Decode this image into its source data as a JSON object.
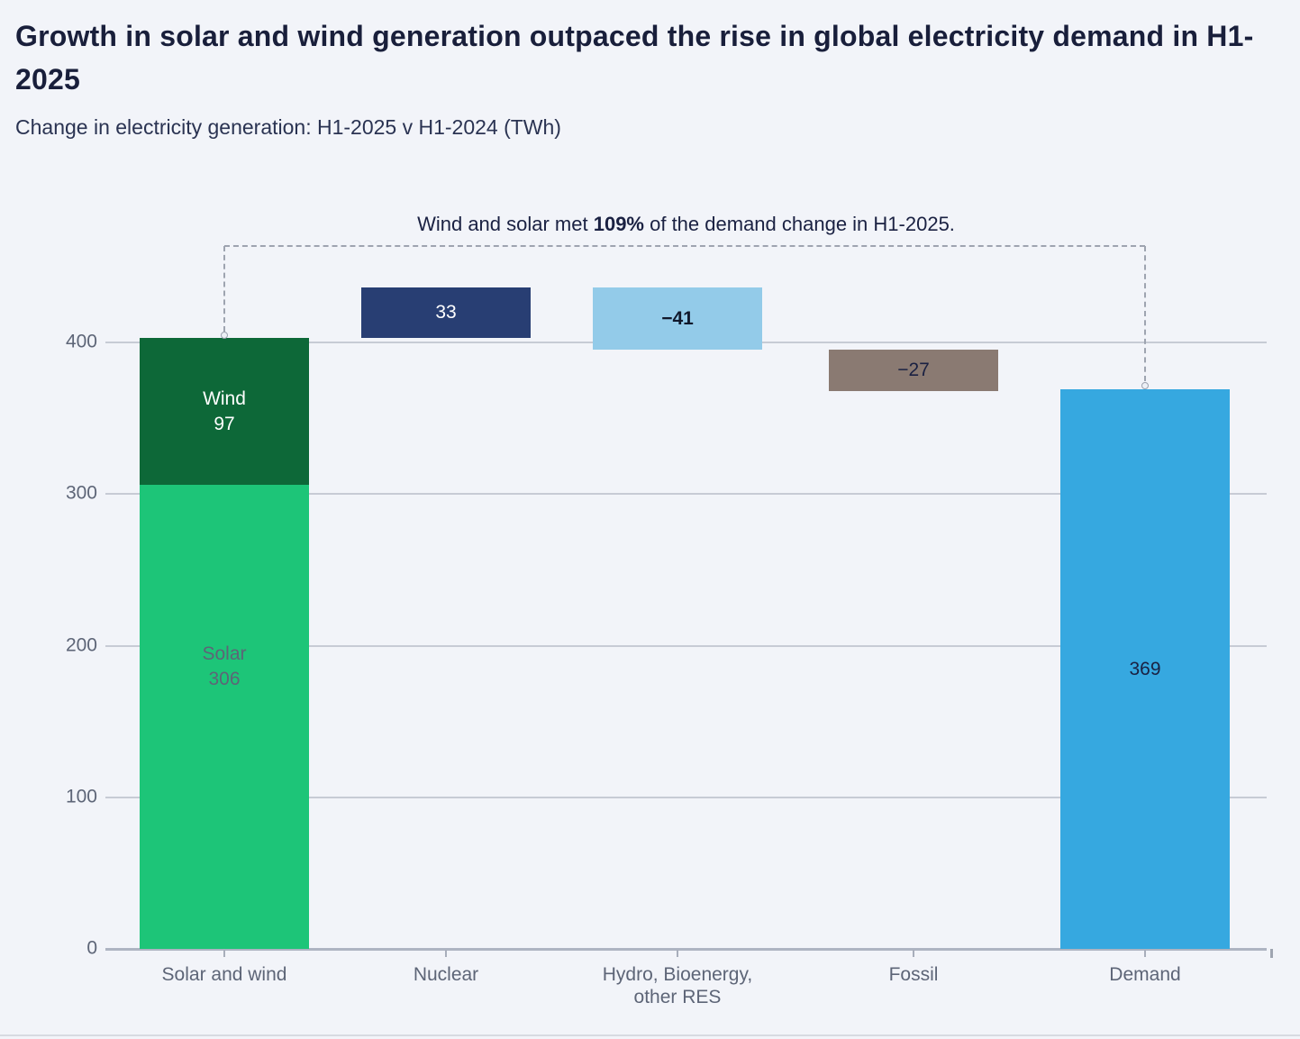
{
  "page": {
    "title": "Growth in solar and wind generation outpaced the rise in global electricity demand in H1-2025",
    "subtitle": "Change in electricity generation: H1-2025 v H1-2024 (TWh)"
  },
  "annotation": {
    "pre": "Wind and solar met ",
    "highlight": "109%",
    "post": " of the demand change in H1-2025."
  },
  "chart_data": {
    "type": "bar",
    "variant": "waterfall",
    "title": "Growth in solar and wind generation outpaced the rise in global electricity demand in H1-2025",
    "subtitle": "Change in electricity generation: H1-2025 v H1-2024 (TWh)",
    "unit": "TWh",
    "ylim": [
      0,
      450
    ],
    "yticks": [
      0,
      100,
      200,
      300,
      400
    ],
    "grid": true,
    "legend": null,
    "categories": [
      "Solar and wind",
      "Nuclear",
      "Hydro, Bioenergy,\nother RES",
      "Fossil",
      "Demand"
    ],
    "bars": [
      {
        "category": "Solar and wind",
        "total": 403,
        "segments": [
          {
            "name": "Solar",
            "value": 306,
            "from": 0,
            "to": 306,
            "color": "#1DC578",
            "label_lines": [
              "Solar",
              "306"
            ],
            "label_color": "#5D6577",
            "label_y": 740
          },
          {
            "name": "Wind",
            "value": 97,
            "from": 306,
            "to": 403,
            "color": "#0D6838",
            "label_lines": [
              "Wind",
              "97"
            ],
            "label_color": "#FFFFFF"
          }
        ]
      },
      {
        "category": "Nuclear",
        "name": "Nuclear",
        "value": 33,
        "from": 403,
        "to": 436,
        "color": "#283E73",
        "label": "33",
        "label_color": "#FFFFFF"
      },
      {
        "category": "Hydro, Bioenergy, other RES",
        "name": "Hydro, Bioenergy, other RES",
        "value": -41,
        "from": 436,
        "to": 395,
        "color": "#93CBE9",
        "label": "−41",
        "label_color": "#10182B",
        "label_weight": "700"
      },
      {
        "category": "Fossil",
        "name": "Fossil",
        "value": -27,
        "from": 395,
        "to": 368,
        "color": "#8A7A72",
        "label": "−27",
        "label_color": "#1A2142"
      },
      {
        "category": "Demand",
        "name": "Demand",
        "value": 369,
        "from": 0,
        "to": 369,
        "color": "#36A8E0",
        "label": "369",
        "label_color": "#1A2142"
      }
    ],
    "connector": {
      "style": "dashed",
      "from_category": "Solar and wind",
      "from_value": 403,
      "to_category": "Demand",
      "to_value": 369
    }
  },
  "colors": {
    "background": "#F2F4F9",
    "title_text": "#191F3B",
    "subtitle_text": "#2A3352",
    "axis_text": "#5D6577",
    "gridline": "#C7CBD5",
    "zero_line": "#AEB4C2",
    "dashed_connector": "#9EA4B0",
    "solar": "#1DC578",
    "wind": "#0D6838",
    "nuclear": "#283E73",
    "hydro_bioenergy_other_res": "#93CBE9",
    "fossil": "#8A7A72",
    "demand": "#36A8E0",
    "bottom_divider": "#D7DAE1"
  }
}
